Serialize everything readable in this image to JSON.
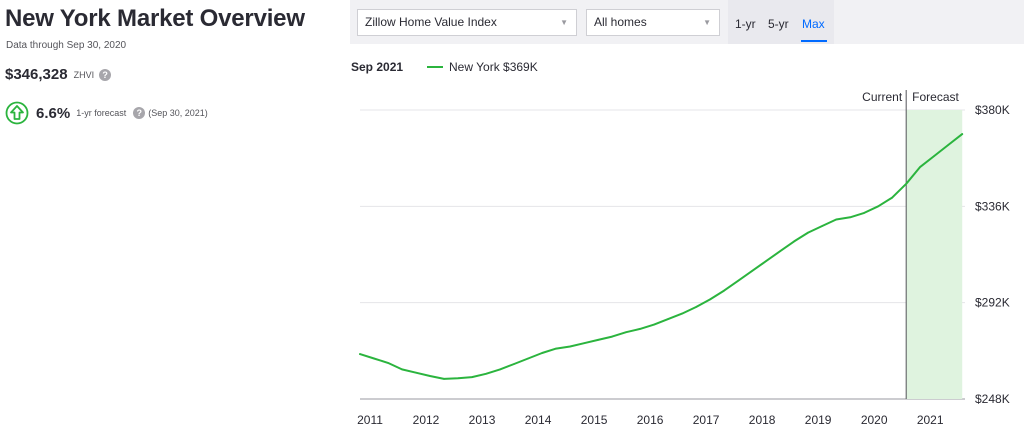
{
  "overview": {
    "title": "New York Market Overview",
    "data_through": "Data through Sep 30, 2020",
    "zhvi_value": "$346,328",
    "zhvi_label": "ZHVI",
    "forecast_pct": "6.6%",
    "forecast_label": "1-yr forecast",
    "forecast_date": "(Sep 30, 2021)",
    "help_icon": "?"
  },
  "controls": {
    "metric_select": "Zillow Home Value Index",
    "home_type_select": "All homes",
    "chevron": "▼",
    "range_options": [
      "1-yr",
      "5-yr",
      "Max"
    ],
    "active_range": "Max"
  },
  "legend": {
    "date": "Sep 2021",
    "series_label": "New York $369K"
  },
  "colors": {
    "series": "#2bb43e",
    "forecast_band": "#dff3df",
    "accent": "#006aff",
    "up_icon": "#2bb43e"
  },
  "icons": {
    "up": "arrow-up-circle-icon",
    "help": "question-circle-icon",
    "dropdown": "chevron-down-icon"
  },
  "chart_data": {
    "type": "line",
    "x_tick_labels": [
      "2011",
      "2012",
      "2013",
      "2014",
      "2015",
      "2016",
      "2017",
      "2018",
      "2019",
      "2020",
      "2021"
    ],
    "y_tick_labels": [
      "$248K",
      "$292K",
      "$336K",
      "$380K"
    ],
    "y_ticks": [
      248,
      292,
      336,
      380
    ],
    "ylim": [
      248,
      380
    ],
    "xlim": [
      2011.0,
      2021.8
    ],
    "grid": true,
    "current_label": "Current",
    "forecast_label": "Forecast",
    "current_x": 2020.75,
    "forecast_end_x": 2021.75,
    "series": [
      {
        "name": "New York",
        "x": [
          2011.0,
          2011.25,
          2011.5,
          2011.75,
          2012.0,
          2012.25,
          2012.5,
          2012.75,
          2013.0,
          2013.25,
          2013.5,
          2013.75,
          2014.0,
          2014.25,
          2014.5,
          2014.75,
          2015.0,
          2015.25,
          2015.5,
          2015.75,
          2016.0,
          2016.25,
          2016.5,
          2016.75,
          2017.0,
          2017.25,
          2017.5,
          2017.75,
          2018.0,
          2018.25,
          2018.5,
          2018.75,
          2019.0,
          2019.25,
          2019.5,
          2019.75,
          2020.0,
          2020.25,
          2020.5,
          2020.75,
          2021.0,
          2021.25,
          2021.5,
          2021.75
        ],
        "y": [
          268.5,
          266.5,
          264.5,
          261.5,
          260.0,
          258.5,
          257.2,
          257.5,
          258.0,
          259.5,
          261.5,
          264.0,
          266.5,
          269.0,
          271.0,
          272.0,
          273.5,
          275.0,
          276.5,
          278.5,
          280.0,
          282.0,
          284.5,
          287.0,
          290.0,
          293.5,
          297.5,
          302.0,
          306.5,
          311.0,
          315.5,
          320.0,
          324.0,
          327.0,
          330.0,
          331.0,
          333.0,
          336.0,
          340.0,
          346.3,
          354.0,
          359.0,
          364.0,
          369.0
        ]
      }
    ]
  }
}
